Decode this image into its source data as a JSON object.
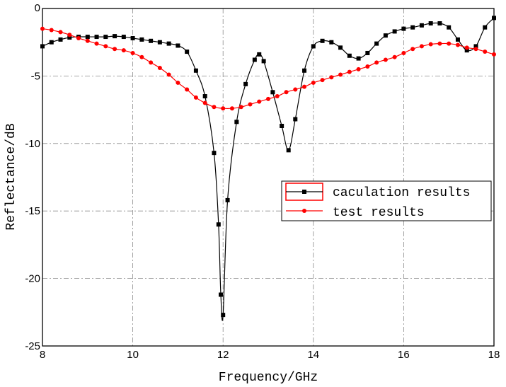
{
  "chart_data": {
    "type": "line",
    "xlabel": "Frequency/GHz",
    "ylabel": "Reflectance/dB",
    "xlim": [
      8,
      18
    ],
    "ylim": [
      -25,
      0
    ],
    "xticks": [
      "8",
      "10",
      "12",
      "14",
      "16",
      "18"
    ],
    "yticks": [
      "0",
      "-5",
      "-10",
      "-15",
      "-20",
      "-25"
    ],
    "grid": true,
    "legend_position": "right-middle",
    "series": [
      {
        "name": "caculation results",
        "color": "#000000",
        "marker": "square",
        "x": [
          8.0,
          8.2,
          8.4,
          8.6,
          8.8,
          9.0,
          9.2,
          9.4,
          9.6,
          9.8,
          10.0,
          10.2,
          10.4,
          10.6,
          10.8,
          11.0,
          11.2,
          11.4,
          11.6,
          11.8,
          11.9,
          11.95,
          12.0,
          12.1,
          12.3,
          12.5,
          12.7,
          12.8,
          12.9,
          13.1,
          13.3,
          13.45,
          13.6,
          13.8,
          14.0,
          14.2,
          14.4,
          14.6,
          14.8,
          15.0,
          15.2,
          15.4,
          15.6,
          15.8,
          16.0,
          16.2,
          16.4,
          16.6,
          16.8,
          17.0,
          17.2,
          17.4,
          17.6,
          17.8,
          18.0
        ],
        "y": [
          -2.8,
          -2.5,
          -2.3,
          -2.15,
          -2.1,
          -2.1,
          -2.1,
          -2.1,
          -2.05,
          -2.1,
          -2.2,
          -2.3,
          -2.4,
          -2.5,
          -2.6,
          -2.75,
          -3.2,
          -4.6,
          -6.5,
          -10.7,
          -16.0,
          -21.2,
          -22.7,
          -14.2,
          -8.4,
          -5.6,
          -3.8,
          -3.4,
          -3.9,
          -6.2,
          -8.7,
          -10.5,
          -8.2,
          -4.6,
          -2.8,
          -2.4,
          -2.5,
          -2.9,
          -3.5,
          -3.7,
          -3.3,
          -2.6,
          -2.0,
          -1.7,
          -1.5,
          -1.4,
          -1.25,
          -1.1,
          -1.1,
          -1.4,
          -2.3,
          -3.1,
          -2.8,
          -1.4,
          -0.7
        ]
      },
      {
        "name": "test results",
        "color": "#ff0000",
        "marker": "circle",
        "x": [
          8.0,
          8.2,
          8.4,
          8.6,
          8.8,
          9.0,
          9.2,
          9.4,
          9.6,
          9.8,
          10.0,
          10.2,
          10.4,
          10.6,
          10.8,
          11.0,
          11.2,
          11.4,
          11.6,
          11.8,
          12.0,
          12.2,
          12.4,
          12.6,
          12.8,
          13.0,
          13.2,
          13.4,
          13.6,
          13.8,
          14.0,
          14.2,
          14.4,
          14.6,
          14.8,
          15.0,
          15.2,
          15.4,
          15.6,
          15.8,
          16.0,
          16.2,
          16.4,
          16.6,
          16.8,
          17.0,
          17.2,
          17.4,
          17.6,
          17.8,
          18.0
        ],
        "y": [
          -1.5,
          -1.6,
          -1.75,
          -1.95,
          -2.2,
          -2.4,
          -2.6,
          -2.8,
          -3.0,
          -3.1,
          -3.3,
          -3.6,
          -4.0,
          -4.4,
          -4.9,
          -5.5,
          -6.0,
          -6.6,
          -7.0,
          -7.3,
          -7.4,
          -7.4,
          -7.3,
          -7.1,
          -6.9,
          -6.7,
          -6.5,
          -6.2,
          -6.0,
          -5.8,
          -5.5,
          -5.3,
          -5.1,
          -4.9,
          -4.7,
          -4.5,
          -4.3,
          -4.0,
          -3.8,
          -3.6,
          -3.3,
          -3.0,
          -2.8,
          -2.65,
          -2.6,
          -2.6,
          -2.7,
          -2.9,
          -3.0,
          -3.2,
          -3.4
        ]
      }
    ]
  }
}
